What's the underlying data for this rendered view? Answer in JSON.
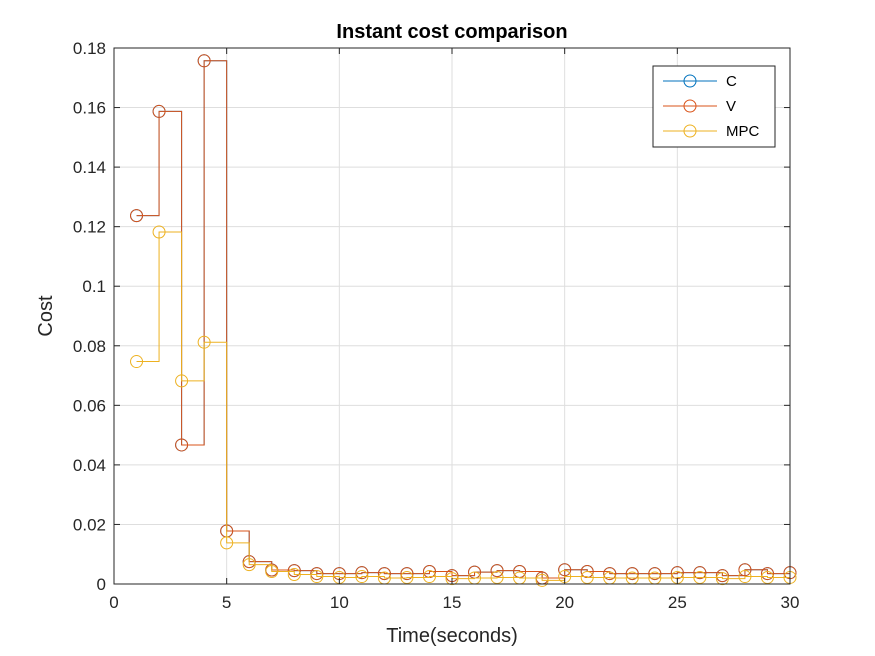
{
  "chart_data": {
    "type": "line",
    "style": "stairs-with-circle-markers",
    "title": "Instant cost comparison",
    "xlabel": "Time(seconds)",
    "ylabel": "Cost",
    "xlim": [
      0,
      30
    ],
    "ylim": [
      0,
      0.18
    ],
    "xticks": [
      0,
      5,
      10,
      15,
      20,
      25,
      30
    ],
    "yticks": [
      0,
      0.02,
      0.04,
      0.06,
      0.08,
      0.1,
      0.12,
      0.14,
      0.16,
      0.18
    ],
    "xtick_labels": [
      "0",
      "5",
      "10",
      "15",
      "20",
      "25",
      "30"
    ],
    "ytick_labels": [
      "0",
      "0.02",
      "0.04",
      "0.06",
      "0.08",
      "0.1",
      "0.12",
      "0.14",
      "0.16",
      "0.18"
    ],
    "grid": true,
    "legend_position": "top-right",
    "x": [
      1,
      2,
      3,
      4,
      5,
      6,
      7,
      8,
      9,
      10,
      11,
      12,
      13,
      14,
      15,
      16,
      17,
      18,
      19,
      20,
      21,
      22,
      23,
      24,
      25,
      26,
      27,
      28,
      29,
      30
    ],
    "series": [
      {
        "name": "C",
        "color": "#0072BD",
        "values": [
          0.1237,
          0.1587,
          0.0467,
          0.1757,
          0.0178,
          0.0075,
          0.0047,
          0.0045,
          0.0035,
          0.0035,
          0.0038,
          0.0035,
          0.0035,
          0.0042,
          0.0028,
          0.004,
          0.0045,
          0.0042,
          0.002,
          0.0048,
          0.0042,
          0.0035,
          0.0035,
          0.0035,
          0.0038,
          0.0038,
          0.0028,
          0.0048,
          0.0035,
          0.0038
        ]
      },
      {
        "name": "V",
        "color": "#D95319",
        "values": [
          0.1237,
          0.1587,
          0.0467,
          0.1757,
          0.0178,
          0.0075,
          0.0047,
          0.0045,
          0.0035,
          0.0035,
          0.0038,
          0.0035,
          0.0035,
          0.0042,
          0.0028,
          0.004,
          0.0045,
          0.0042,
          0.002,
          0.0048,
          0.0042,
          0.0035,
          0.0035,
          0.0035,
          0.0038,
          0.0038,
          0.0028,
          0.0048,
          0.0035,
          0.0038
        ]
      },
      {
        "name": "MPC",
        "color": "#EDB120",
        "values": [
          0.0747,
          0.1182,
          0.0682,
          0.0812,
          0.0138,
          0.0065,
          0.0042,
          0.0032,
          0.0025,
          0.0022,
          0.0025,
          0.002,
          0.0022,
          0.0025,
          0.0018,
          0.002,
          0.0022,
          0.002,
          0.0012,
          0.0025,
          0.0022,
          0.002,
          0.002,
          0.002,
          0.0022,
          0.0022,
          0.0018,
          0.0025,
          0.0022,
          0.0022
        ]
      }
    ]
  }
}
